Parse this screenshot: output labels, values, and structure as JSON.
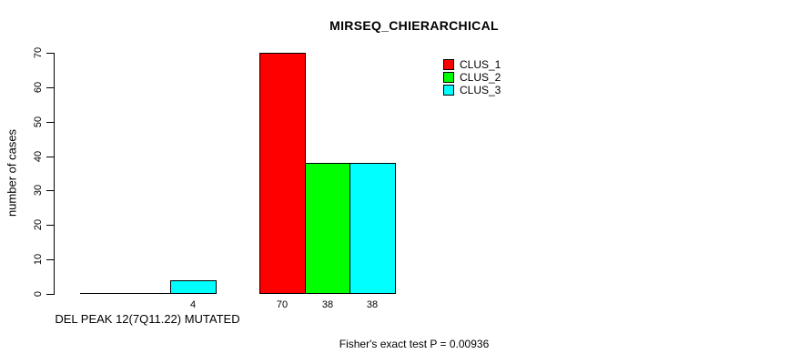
{
  "chart_data": {
    "type": "bar",
    "title": "MIRSEQ_CHIERARCHICAL",
    "ylabel": "number of cases",
    "xlabel": "DEL PEAK 12(7Q11.22) MUTATED",
    "annotation": "Fisher's exact test P = 0.00936",
    "ylim": [
      0,
      70
    ],
    "yticks": [
      0,
      10,
      20,
      30,
      40,
      50,
      60,
      70
    ],
    "grid": false,
    "legend_position": "top-right",
    "categories": [
      "DEL PEAK 12(7Q11.22) MUTATED",
      ""
    ],
    "series": [
      {
        "name": "CLUS_1",
        "color": "#ff0000",
        "values": [
          0,
          70
        ]
      },
      {
        "name": "CLUS_2",
        "color": "#00ff00",
        "values": [
          0,
          38
        ]
      },
      {
        "name": "CLUS_3",
        "color": "#00ffff",
        "values": [
          4,
          38
        ]
      }
    ],
    "bar_labels": [
      [
        "",
        "",
        "4"
      ],
      [
        "70",
        "38",
        "38"
      ]
    ],
    "axis_color": "#000000",
    "background_color": "#ffffff"
  }
}
